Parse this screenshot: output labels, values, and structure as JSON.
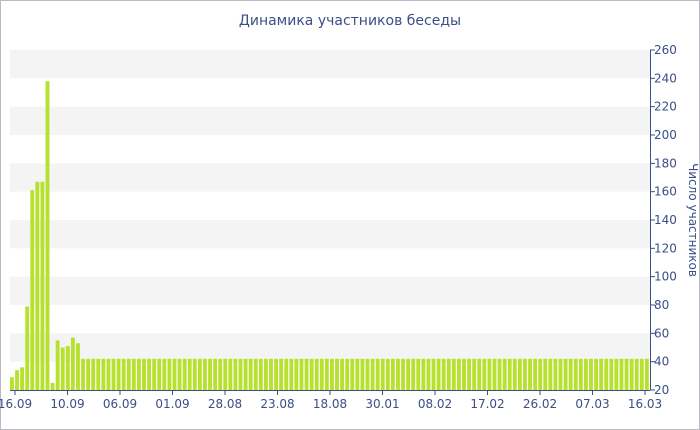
{
  "chart_data": {
    "type": "bar",
    "title": "Динамика участников беседы",
    "ylabel": "Число участников",
    "ylim": [
      20,
      260
    ],
    "ytick_step": 20,
    "color": "#b6e22f",
    "band_color": "#f4f4f4",
    "axis_color": "#3b4f86",
    "x_tick_labels": [
      "16.09",
      "10.09",
      "06.09",
      "01.09",
      "28.08",
      "23.08",
      "18.08",
      "30.01",
      "08.02",
      "17.02",
      "26.02",
      "07.03",
      "16.03"
    ],
    "values": [
      29,
      34,
      36,
      79,
      161,
      167,
      167,
      238,
      25,
      55,
      50,
      51,
      57,
      53,
      42,
      42,
      42,
      42,
      42,
      42,
      42,
      42,
      42,
      42,
      42,
      42,
      42,
      42,
      42,
      42,
      42,
      42,
      42,
      42,
      42,
      42,
      42,
      42,
      42,
      42,
      42,
      42,
      42,
      42,
      42,
      42,
      42,
      42,
      42,
      42,
      42,
      42,
      42,
      42,
      42,
      42,
      42,
      42,
      42,
      42,
      42,
      42,
      42,
      42,
      42,
      42,
      42,
      42,
      42,
      42,
      42,
      42,
      42,
      42,
      42,
      42,
      42,
      42,
      42,
      42,
      42,
      42,
      42,
      42,
      42,
      42,
      42,
      42,
      42,
      42,
      42,
      42,
      42,
      42,
      42,
      42,
      42,
      42,
      42,
      42,
      42,
      42,
      42,
      42,
      42,
      42,
      42,
      42,
      42,
      42,
      42,
      42,
      42,
      42,
      42,
      42,
      42,
      42,
      42,
      42,
      42,
      42,
      42,
      42,
      42,
      42
    ]
  }
}
